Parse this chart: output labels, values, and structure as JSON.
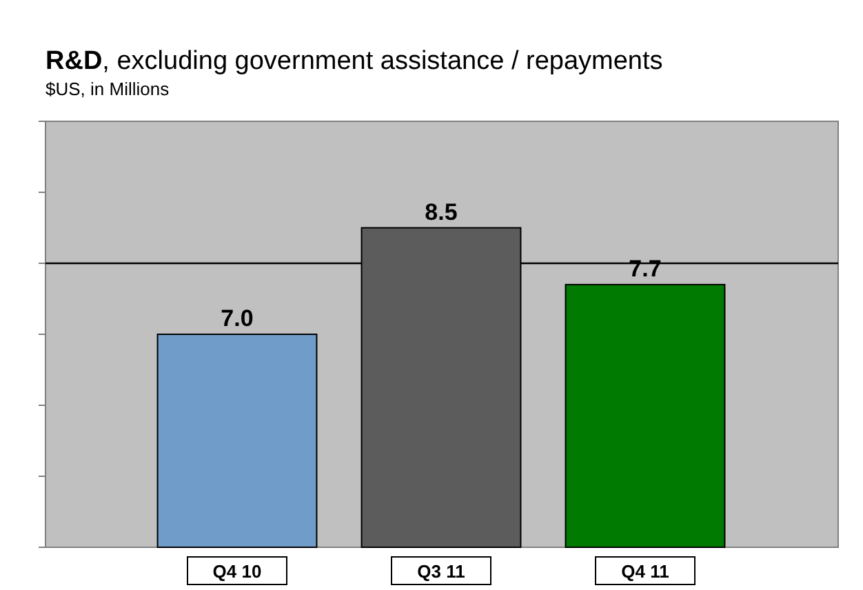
{
  "chart_data": {
    "type": "bar",
    "title": "R&D, excluding government assistance / repayments",
    "subtitle": "$US, in Millions",
    "categories": [
      "Q4 10",
      "Q3 11",
      "Q4 11"
    ],
    "values": [
      7.0,
      8.5,
      7.7
    ],
    "colors": [
      "#6f9cc8",
      "#5c5c5c",
      "#007a00"
    ],
    "ylim": [
      4,
      10
    ],
    "yticks": [
      {
        "value": 4,
        "label": null
      },
      {
        "value": 5,
        "label": null
      },
      {
        "value": 6,
        "label": null
      },
      {
        "value": 7,
        "label": null
      },
      {
        "value": 8,
        "label": null
      },
      {
        "value": 9,
        "label": null
      },
      {
        "value": 10,
        "label": null
      }
    ],
    "tick_labels": "x",
    "ref_lines": [
      {
        "axis": "y",
        "value": 8,
        "color": "#000000"
      }
    ],
    "value_labels": [
      "7.0",
      "8.5",
      "7.7"
    ]
  }
}
